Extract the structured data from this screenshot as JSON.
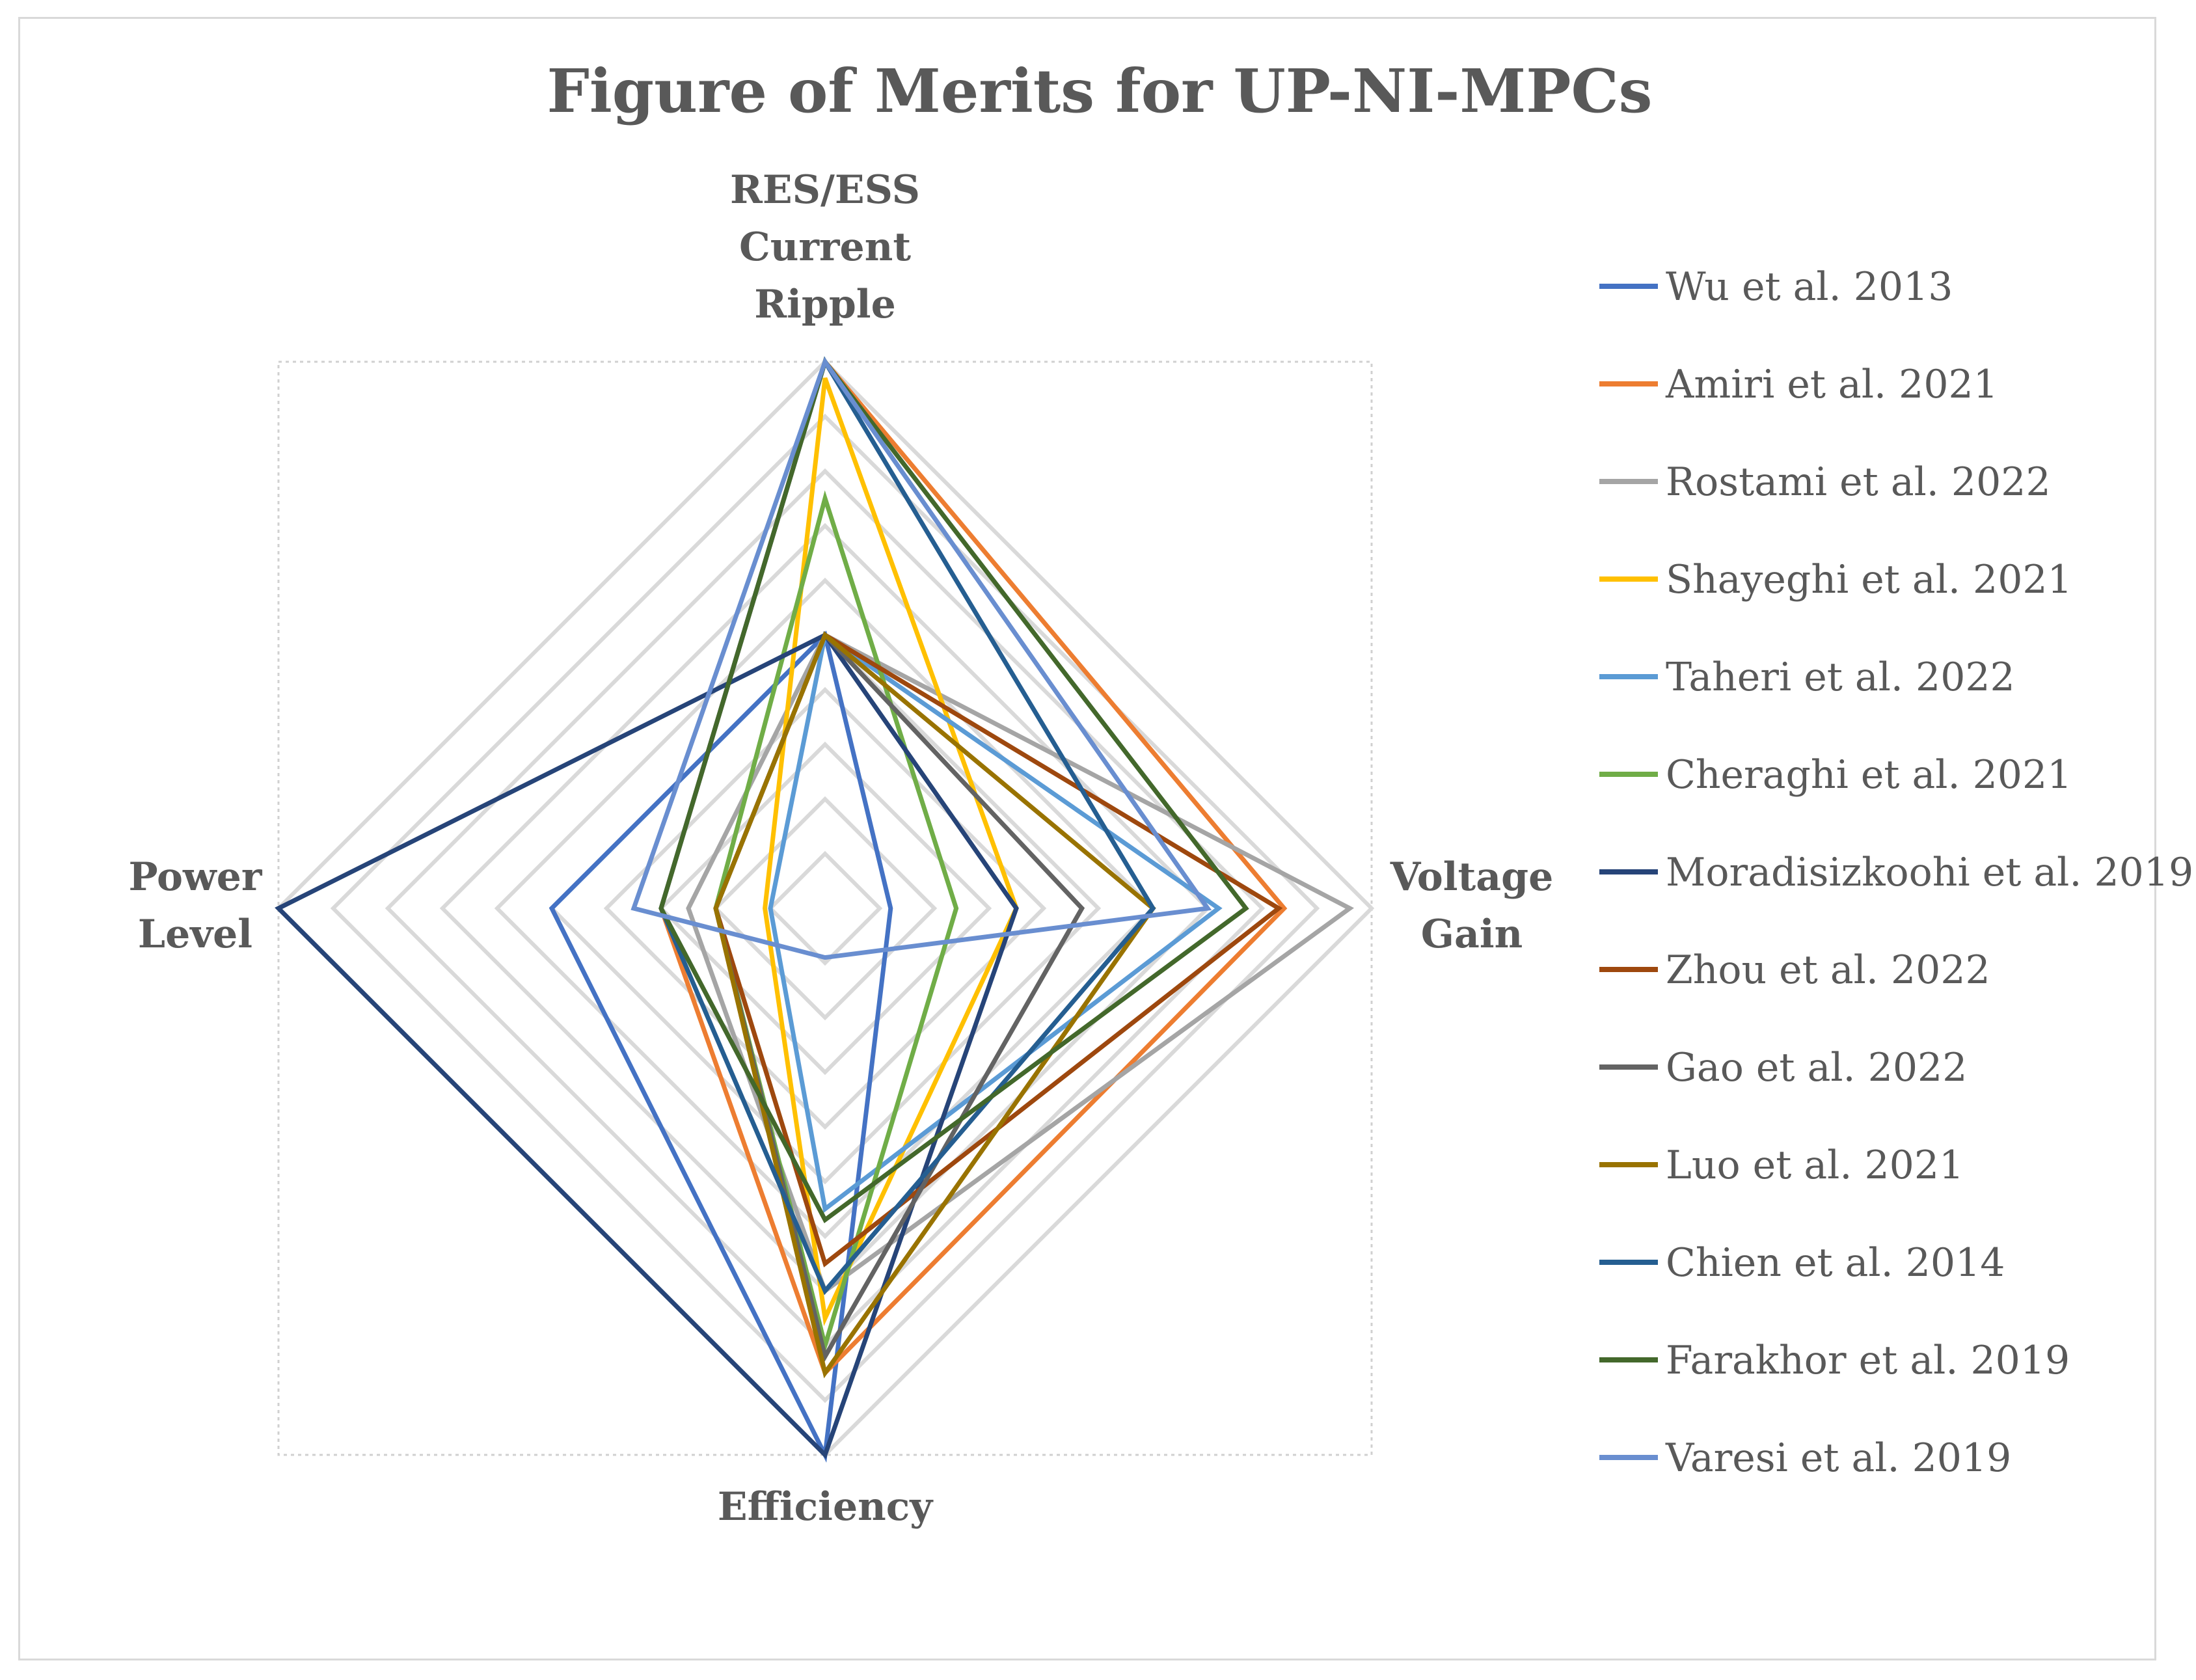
{
  "chart_data": {
    "type": "radar",
    "title": "Figure of Merits for UP-NI-MPCs",
    "axes": [
      {
        "key": "ripple",
        "label": "RES/ESS Current Ripple",
        "label_lines": [
          "RES/ESS",
          "Current",
          "Ripple"
        ]
      },
      {
        "key": "gain",
        "label": "Voltage Gain",
        "label_lines": [
          "Voltage",
          "Gain"
        ]
      },
      {
        "key": "efficiency",
        "label": "Efficiency",
        "label_lines": [
          "Efficiency"
        ]
      },
      {
        "key": "power",
        "label": "Power Level",
        "label_lines": [
          "Power",
          "Level"
        ]
      }
    ],
    "axis_order": [
      "ripple",
      "gain",
      "efficiency",
      "power"
    ],
    "rings": 10,
    "range": [
      0,
      10
    ],
    "legend_position": "right",
    "series": [
      {
        "name": "Wu et al. 2013",
        "color": "#4472C4",
        "values": [
          5,
          1.2,
          10,
          5
        ]
      },
      {
        "name": "Amiri et al. 2021",
        "color": "#ED7D31",
        "values": [
          10,
          8.4,
          8.5,
          3
        ]
      },
      {
        "name": "Rostami et al. 2022",
        "color": "#A5A5A5",
        "values": [
          5,
          9.6,
          7,
          2.5
        ]
      },
      {
        "name": "Shayeghi et al. 2021",
        "color": "#FFC000",
        "values": [
          9.7,
          3.5,
          7.5,
          1.1
        ]
      },
      {
        "name": "Taheri et al. 2022",
        "color": "#5B9BD5",
        "values": [
          5,
          7.2,
          5.5,
          1
        ]
      },
      {
        "name": "Cheraghi et al. 2021",
        "color": "#70AD47",
        "values": [
          7.5,
          2.4,
          8,
          2
        ]
      },
      {
        "name": "Moradisizkoohi et al. 2019",
        "color": "#264478",
        "values": [
          5,
          3.5,
          10,
          10
        ]
      },
      {
        "name": "Zhou et al. 2022",
        "color": "#9E480E",
        "values": [
          5,
          8.3,
          6.5,
          2
        ]
      },
      {
        "name": "Gao et al. 2022",
        "color": "#636363",
        "values": [
          5,
          4.7,
          8.2,
          2
        ]
      },
      {
        "name": "Luo et al. 2021",
        "color": "#997300",
        "values": [
          5,
          6,
          8.5,
          2
        ]
      },
      {
        "name": "Chien et al. 2014",
        "color": "#255E91",
        "values": [
          10,
          6,
          7,
          3
        ]
      },
      {
        "name": "Farakhor et al. 2019",
        "color": "#43682B",
        "values": [
          10,
          7.7,
          5.7,
          3
        ]
      },
      {
        "name": "Varesi et al. 2019",
        "color": "#698ED0",
        "values": [
          10,
          7,
          0.9,
          3.5
        ]
      }
    ]
  }
}
